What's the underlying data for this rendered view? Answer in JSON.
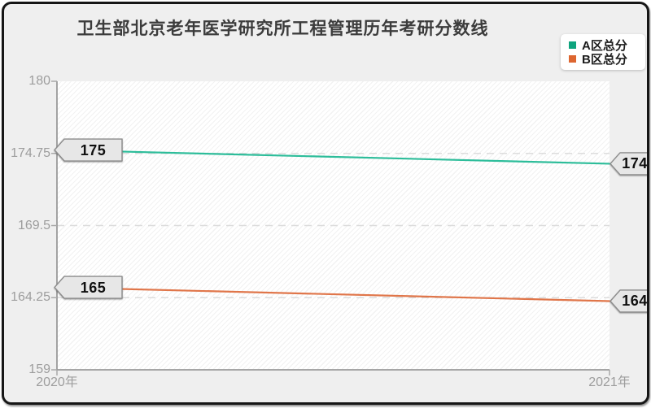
{
  "title": "卫生部北京老年医学研究所工程管理历年考研分数线",
  "colors": {
    "background": "#efefef",
    "frame_border": "#161616",
    "axis_text": "#9d9d9d",
    "grid_line": "#dcdcdc",
    "spine": "#9a9a9a",
    "callout_fill": "#e7e7e7",
    "callout_border": "#8c8c8c"
  },
  "legend": {
    "position": "top-right",
    "items": [
      {
        "label": "A区总分",
        "marker_color": "#0fa47e"
      },
      {
        "label": "B区总分",
        "marker_color": "#dd6630"
      }
    ]
  },
  "chart_data": {
    "type": "line",
    "title": "卫生部北京老年医学研究所工程管理历年考研分数线",
    "categories": [
      "2020年",
      "2021年"
    ],
    "series": [
      {
        "name": "A区总分",
        "color": "#2dbd9a",
        "marker_color": "#0fa47e",
        "values": [
          175,
          174
        ],
        "point_labels": [
          "175",
          "174"
        ]
      },
      {
        "name": "B区总分",
        "color": "#e0764a",
        "marker_color": "#dd6630",
        "values": [
          165,
          164
        ],
        "point_labels": [
          "165",
          "164"
        ]
      }
    ],
    "ylim": [
      159,
      180
    ],
    "yticks": [
      180,
      174.75,
      169.5,
      164.25,
      159
    ],
    "ytick_labels": [
      "180",
      "174.75",
      "169.5",
      "164.25",
      "159"
    ],
    "grid": "horizontal-dashed",
    "legend_position": "top-right",
    "plot_background": "diagonal-hatch"
  }
}
